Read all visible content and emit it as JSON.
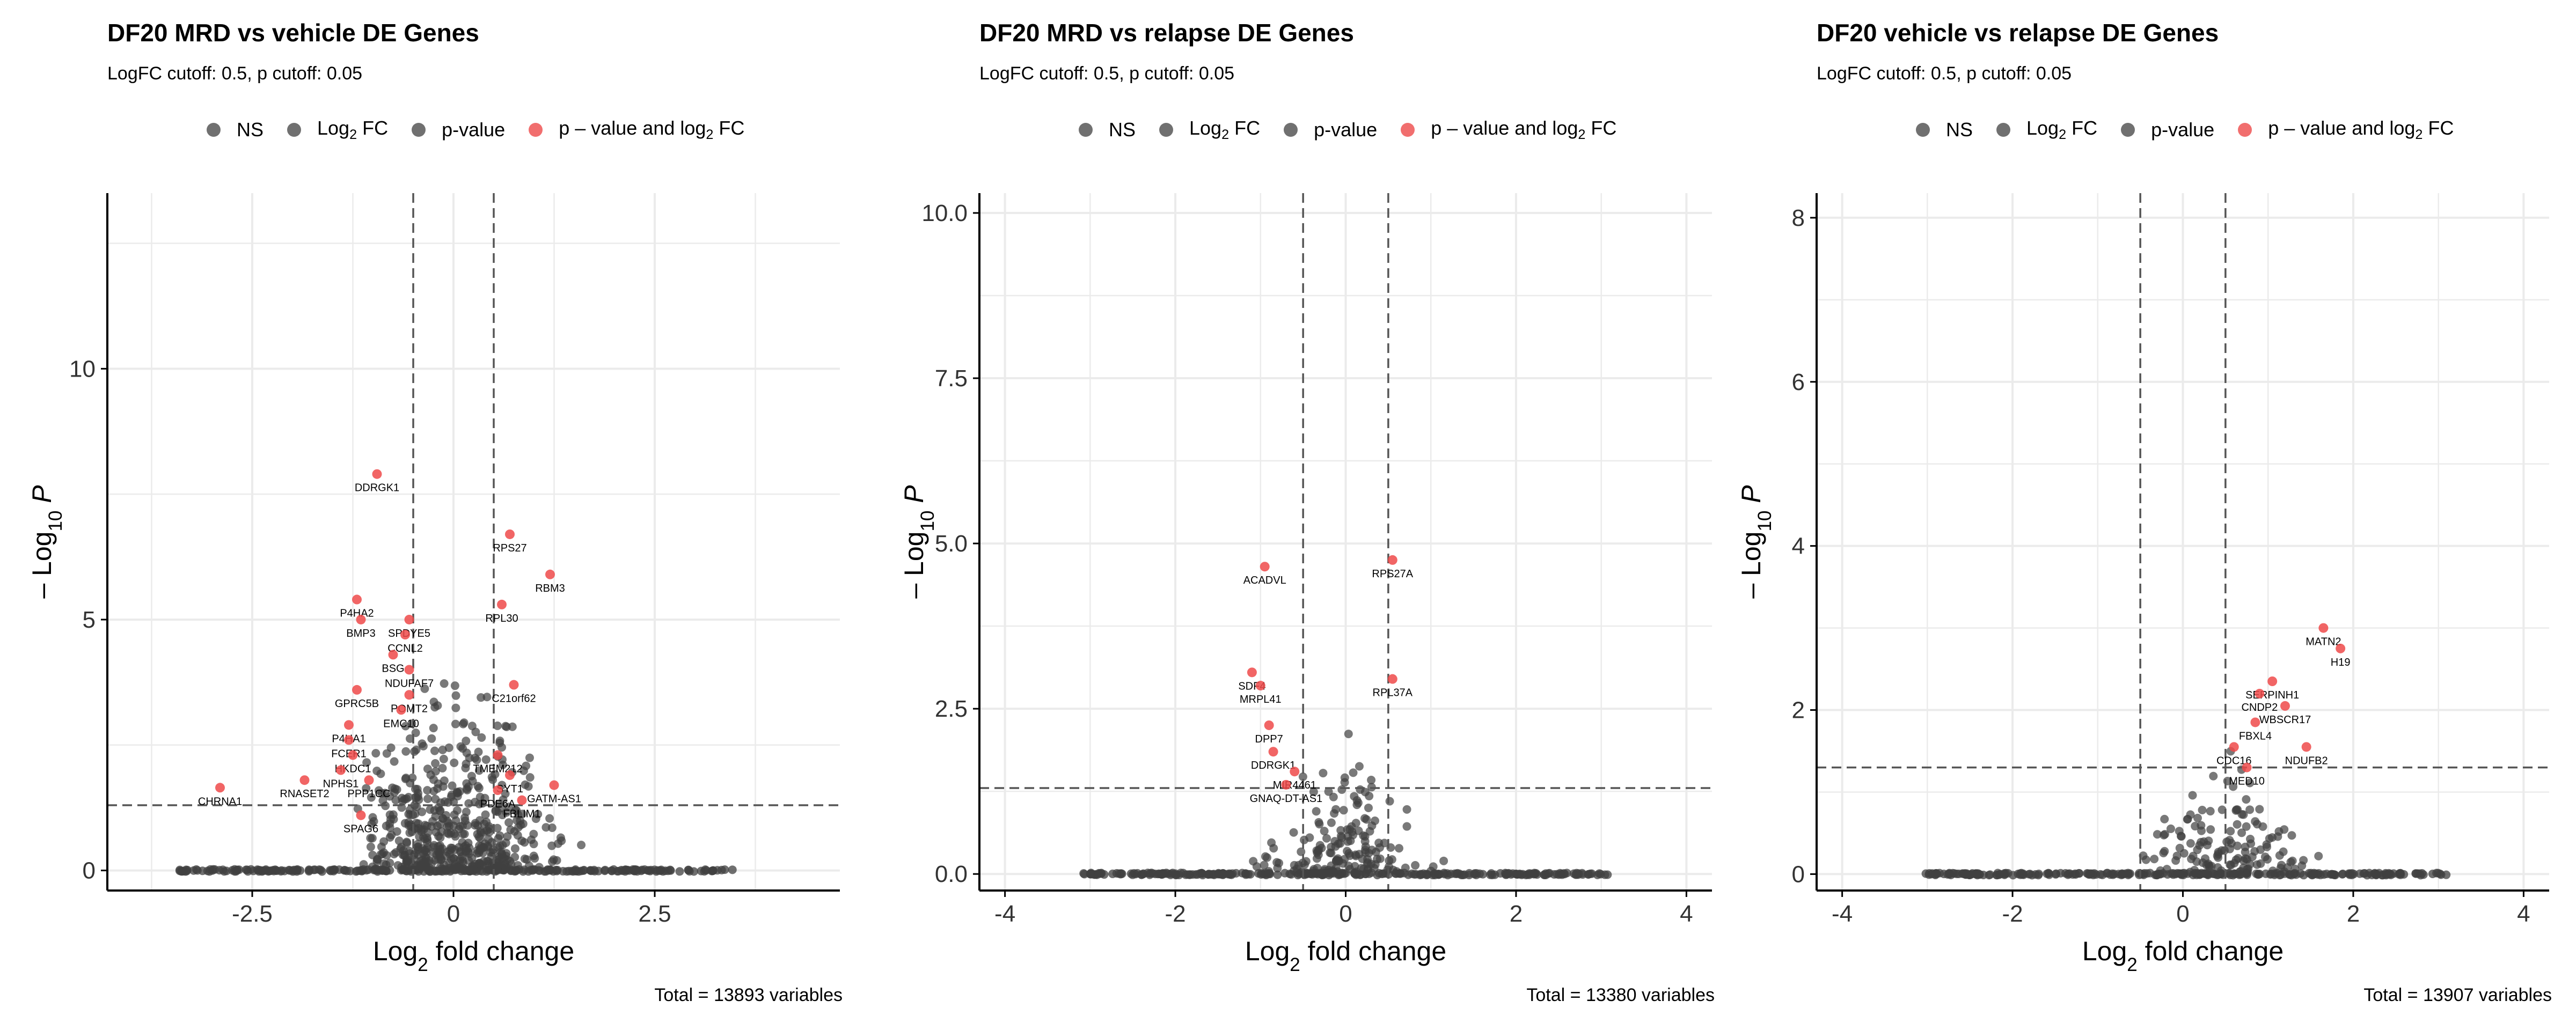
{
  "colors": {
    "grey": "#404040",
    "red": "#ee4a4a",
    "grid": "#ebebeb",
    "axis": "#000000",
    "cutoff": "#555555"
  },
  "legend_labels": {
    "ns": "NS",
    "log2fc_prefix": "Log",
    "log2fc_sub": "2",
    "log2fc_suffix": " FC",
    "pvalue": "p-value",
    "both_prefix": "p – value and log",
    "both_sub": "2",
    "both_suffix": " FC"
  },
  "axis_labels": {
    "x_prefix": "Log",
    "x_sub": "2",
    "x_suffix": " fold change",
    "y_prefix": "– Log",
    "y_sub": "10",
    "y_suffix": " P"
  },
  "chart_data": [
    {
      "type": "scatter",
      "title": "DF20 MRD vs vehicle DE  Genes",
      "subtitle": "LogFC cutoff: 0.5, p cutoff: 0.05",
      "total": "Total = 13893 variables",
      "xlim": [
        -4.3,
        4.8
      ],
      "ylim": [
        -0.4,
        13.5
      ],
      "xticks": [
        -2.5,
        0,
        2.5
      ],
      "xtick_labels": [
        "-2.5",
        "0",
        "2.5"
      ],
      "yticks": [
        0,
        5,
        10
      ],
      "ytick_labels": [
        "0",
        "5",
        "10"
      ],
      "fc_cutoff": 0.5,
      "p_cutoff_y": 1.3,
      "labeled_points": [
        {
          "label": "DDRGK1",
          "x": -0.95,
          "y": 7.9
        },
        {
          "label": "RPS27",
          "x": 0.7,
          "y": 6.7
        },
        {
          "label": "RBM3",
          "x": 1.2,
          "y": 5.9
        },
        {
          "label": "RPL30",
          "x": 0.6,
          "y": 5.3
        },
        {
          "label": "P4HA2",
          "x": -1.2,
          "y": 5.4
        },
        {
          "label": "BMP3",
          "x": -1.15,
          "y": 5.0
        },
        {
          "label": "SPDYE5",
          "x": -0.55,
          "y": 5.0
        },
        {
          "label": "CCNL2",
          "x": -0.6,
          "y": 4.7
        },
        {
          "label": "BSG",
          "x": -0.75,
          "y": 4.3
        },
        {
          "label": "NDUFAF7",
          "x": -0.55,
          "y": 4.0
        },
        {
          "label": "POMT2",
          "x": -0.55,
          "y": 3.5
        },
        {
          "label": "C21orf62",
          "x": 0.75,
          "y": 3.7
        },
        {
          "label": "GPRC5B",
          "x": -1.2,
          "y": 3.6
        },
        {
          "label": "EMC10",
          "x": -0.65,
          "y": 3.2
        },
        {
          "label": "P4HA1",
          "x": -1.3,
          "y": 2.9
        },
        {
          "label": "FCER1",
          "x": -1.3,
          "y": 2.6
        },
        {
          "label": "HKDC1",
          "x": -1.25,
          "y": 2.3
        },
        {
          "label": "NPHS1",
          "x": -1.4,
          "y": 2.0
        },
        {
          "label": "PPP1CC",
          "x": -1.05,
          "y": 1.8
        },
        {
          "label": "TMEM212",
          "x": 0.55,
          "y": 2.3
        },
        {
          "label": "SYT1",
          "x": 0.7,
          "y": 1.9
        },
        {
          "label": "PDE6A",
          "x": 0.55,
          "y": 1.6
        },
        {
          "label": "RNASET2",
          "x": -1.85,
          "y": 1.8
        },
        {
          "label": "CHRNA1",
          "x": -2.9,
          "y": 1.65
        },
        {
          "label": "GATM-AS1",
          "x": 1.25,
          "y": 1.7
        },
        {
          "label": "FBLIM1",
          "x": 0.85,
          "y": 1.4
        },
        {
          "label": "SPAG6",
          "x": -1.15,
          "y": 1.1
        }
      ]
    },
    {
      "type": "scatter",
      "title": "DF20 MRD vs relapse DE  Genes",
      "subtitle": "LogFC cutoff: 0.5, p cutoff: 0.05",
      "total": "Total = 13380 variables",
      "xlim": [
        -4.3,
        4.3
      ],
      "ylim": [
        -0.25,
        10.3
      ],
      "xticks": [
        -4,
        -2,
        0,
        2,
        4
      ],
      "xtick_labels": [
        "-4",
        "-2",
        "0",
        "2",
        "4"
      ],
      "yticks": [
        0,
        2.5,
        5,
        7.5,
        10
      ],
      "ytick_labels": [
        "0.0",
        "2.5",
        "5.0",
        "7.5",
        "10.0"
      ],
      "fc_cutoff": 0.5,
      "p_cutoff_y": 1.3,
      "labeled_points": [
        {
          "label": "ACADVL",
          "x": -0.95,
          "y": 4.65
        },
        {
          "label": "RPS27A",
          "x": 0.55,
          "y": 4.75
        },
        {
          "label": "SDF4",
          "x": -1.1,
          "y": 3.05
        },
        {
          "label": "MRPL41",
          "x": -1.0,
          "y": 2.85
        },
        {
          "label": "RPL37A",
          "x": 0.55,
          "y": 2.95
        },
        {
          "label": "DPP7",
          "x": -0.9,
          "y": 2.25
        },
        {
          "label": "DDRGK1",
          "x": -0.85,
          "y": 1.85
        },
        {
          "label": "MIR4461",
          "x": -0.6,
          "y": 1.55
        },
        {
          "label": "GNAQ-DT-AS1",
          "x": -0.7,
          "y": 1.35
        }
      ]
    },
    {
      "type": "scatter",
      "title": "DF20 vehicle vs relapse DE  Genes",
      "subtitle": "LogFC cutoff: 0.5, p cutoff: 0.05",
      "total": "Total = 13907 variables",
      "xlim": [
        -4.3,
        4.3
      ],
      "ylim": [
        -0.2,
        8.3
      ],
      "xticks": [
        -4,
        -2,
        0,
        2,
        4
      ],
      "xtick_labels": [
        "-4",
        "-2",
        "0",
        "2",
        "4"
      ],
      "yticks": [
        0,
        2,
        4,
        6,
        8
      ],
      "ytick_labels": [
        "0",
        "2",
        "4",
        "6",
        "8"
      ],
      "fc_cutoff": 0.5,
      "p_cutoff_y": 1.3,
      "labeled_points": [
        {
          "label": "MATN2",
          "x": 1.65,
          "y": 3.0
        },
        {
          "label": "H19",
          "x": 1.85,
          "y": 2.75
        },
        {
          "label": "SERPINH1",
          "x": 1.05,
          "y": 2.35
        },
        {
          "label": "CNDP2",
          "x": 0.9,
          "y": 2.2
        },
        {
          "label": "WBSCR17",
          "x": 1.2,
          "y": 2.05
        },
        {
          "label": "FBXL4",
          "x": 0.85,
          "y": 1.85
        },
        {
          "label": "CDC16",
          "x": 0.6,
          "y": 1.55
        },
        {
          "label": "NDUFB2",
          "x": 1.45,
          "y": 1.55
        },
        {
          "label": "MED10",
          "x": 0.75,
          "y": 1.3
        }
      ]
    }
  ]
}
